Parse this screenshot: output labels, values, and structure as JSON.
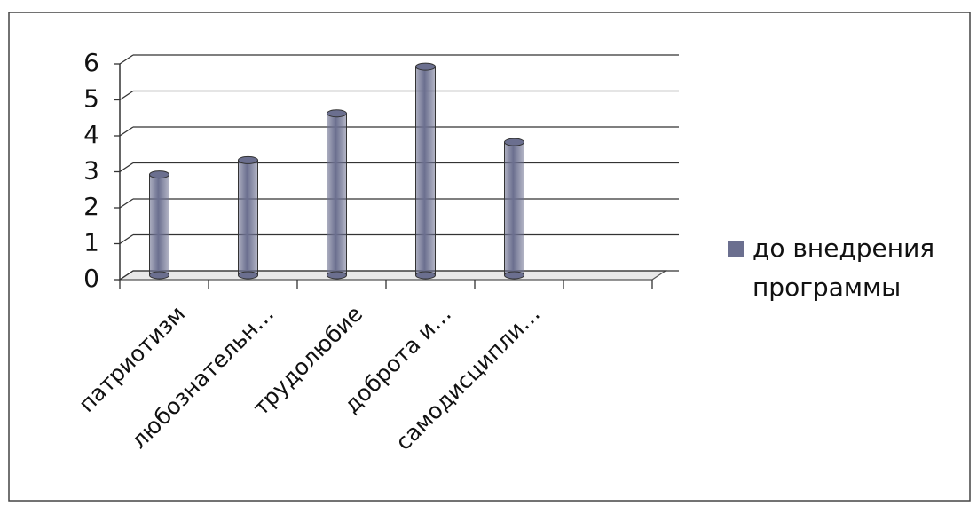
{
  "chart_data": {
    "type": "bar",
    "categories": [
      "патриотизм",
      "любознательн…",
      "трудолюбие",
      "доброта и…",
      "самодисципли…",
      null
    ],
    "series": [
      {
        "name": "до внедрения программы",
        "color": "#6b6f8f",
        "values": [
          2.8,
          3.2,
          4.5,
          5.8,
          3.7,
          null
        ]
      }
    ],
    "ylim": [
      0,
      6
    ],
    "yticks": [
      0,
      1,
      2,
      3,
      4,
      5,
      6
    ],
    "grid": true,
    "legend": "right"
  }
}
